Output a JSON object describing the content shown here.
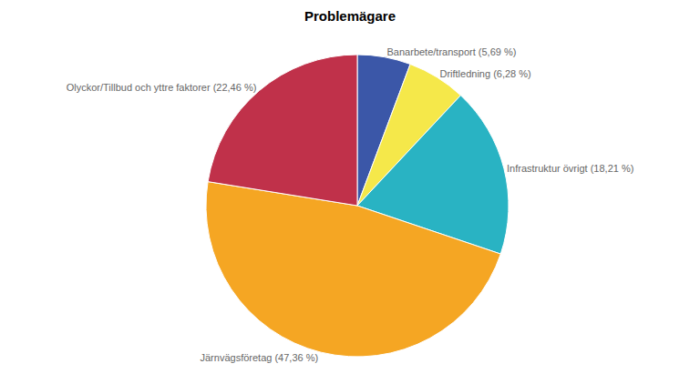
{
  "chart_data": {
    "type": "pie",
    "title": "Problemägare",
    "categories": [
      "Banarbete/transport (5,69 %)",
      "Driftledning (6,28 %)",
      "Infrastruktur övrigt (18,21 %)",
      "Järnvägsföretag (47,36 %)",
      "Olyckor/Tillbud och yttre faktorer (22,46 %)"
    ],
    "values": [
      5.69,
      6.28,
      18.21,
      47.36,
      22.46
    ],
    "colors": [
      "#3B57A8",
      "#F5E84A",
      "#29B3C3",
      "#F5A623",
      "#C0314A"
    ],
    "data_labels": true
  }
}
